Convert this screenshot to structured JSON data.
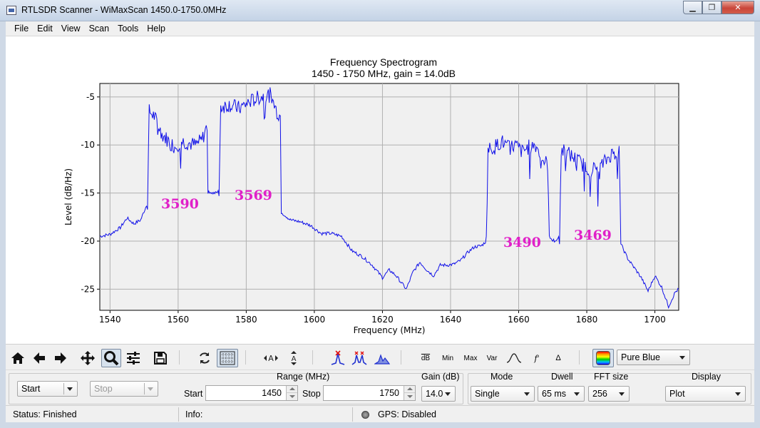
{
  "window": {
    "title": "RTLSDR Scanner - WiMaxScan 1450.0-1750.0MHz",
    "buttons": {
      "minimize": "▁",
      "maximize": "❐",
      "close": "✕"
    }
  },
  "menu": [
    "File",
    "Edit",
    "View",
    "Scan",
    "Tools",
    "Help"
  ],
  "chart_data": {
    "type": "line",
    "title": "Frequency Spectrogram",
    "subtitle": "1450 - 1750 MHz, gain = 14.0dB",
    "xlabel": "Frequency (MHz)",
    "ylabel": "Level (dB/Hz)",
    "xlim": [
      1537,
      1707
    ],
    "ylim": [
      -27.2,
      -3.6
    ],
    "xticks": [
      1540,
      1560,
      1580,
      1600,
      1620,
      1640,
      1660,
      1680,
      1700
    ],
    "yticks": [
      -25,
      -20,
      -15,
      -10,
      -5
    ],
    "grid": true,
    "line_color": "#1010e8",
    "background": "#f0f0f0",
    "series": [
      {
        "x": [
          1537,
          1540,
          1543,
          1545,
          1547,
          1549,
          1551,
          1551.5,
          1553,
          1555,
          1557,
          1559,
          1561,
          1563,
          1565,
          1567,
          1568.5,
          1569,
          1570,
          1571,
          1572,
          1572.5,
          1575,
          1578,
          1581,
          1584,
          1587,
          1589,
          1590,
          1590.3,
          1593,
          1596,
          1599,
          1602,
          1605,
          1608,
          1611,
          1614,
          1617,
          1620,
          1622,
          1624,
          1627,
          1629,
          1631,
          1633,
          1635,
          1637,
          1639,
          1641,
          1643,
          1645,
          1647,
          1649,
          1650.5,
          1651,
          1653,
          1655,
          1657,
          1659,
          1661,
          1663,
          1665,
          1667,
          1668.5,
          1669,
          1670.5,
          1672,
          1672.5,
          1675,
          1678,
          1681,
          1684,
          1687,
          1689.5,
          1690,
          1692,
          1694,
          1696,
          1698,
          1700,
          1702,
          1704,
          1706,
          1707
        ],
        "y": [
          -19.5,
          -19.3,
          -18.6,
          -17.6,
          -18.2,
          -17.8,
          -16.0,
          -6.5,
          -7.0,
          -8.8,
          -9.5,
          -10.2,
          -9.6,
          -9.8,
          -10.0,
          -9.5,
          -8.0,
          -14.8,
          -15.0,
          -15.0,
          -14.8,
          -6.0,
          -5.8,
          -6.2,
          -5.5,
          -5.0,
          -4.8,
          -6.5,
          -7.0,
          -17.0,
          -17.8,
          -18.0,
          -18.4,
          -19.2,
          -19.2,
          -19.5,
          -21.0,
          -21.6,
          -22.5,
          -23.8,
          -23.0,
          -23.6,
          -25.0,
          -23.2,
          -22.2,
          -23.0,
          -23.6,
          -22.5,
          -22.5,
          -22.4,
          -22.0,
          -21.2,
          -20.6,
          -20.5,
          -20.0,
          -10.5,
          -10.2,
          -9.6,
          -10.3,
          -10.0,
          -10.7,
          -10.2,
          -10.0,
          -11.5,
          -12.0,
          -19.6,
          -20.0,
          -19.6,
          -10.5,
          -11.0,
          -11.8,
          -12.6,
          -12.3,
          -11.0,
          -10.6,
          -20.3,
          -21.8,
          -22.8,
          -23.8,
          -25.2,
          -23.6,
          -24.8,
          -26.8,
          -25.3,
          -25.0
        ]
      }
    ]
  },
  "overlay_labels": [
    {
      "text": "3590"
    },
    {
      "text": "3569"
    },
    {
      "text": "3490"
    },
    {
      "text": "3469"
    }
  ],
  "toolbar": {
    "icons": [
      "home-icon",
      "back-icon",
      "forward-icon",
      "pan-icon",
      "zoom-icon",
      "configure-subplots-icon",
      "save-icon",
      "refresh-icon",
      "grid-icon",
      "auto-range-x-icon",
      "auto-range-y-icon",
      "peak-icon",
      "peaks-icon",
      "fill-icon",
      "db-icon",
      "min-icon",
      "max-icon",
      "var-icon",
      "smooth-icon",
      "diff-icon",
      "delta-icon",
      "colour-map-icon"
    ],
    "text_buttons": {
      "db": "dB",
      "min": "Min",
      "max": "Max",
      "var": "Var",
      "fprime": "f'",
      "delta": "Δ"
    },
    "colour_map": "Pure Blue"
  },
  "controls": {
    "start_button": "Start",
    "stop_button": "Stop",
    "range_label": "Range (MHz)",
    "start_label": "Start",
    "start_value": "1450",
    "stop_label": "Stop",
    "stop_value": "1750",
    "gain_label": "Gain (dB)",
    "gain_value": "14.0",
    "mode_label": "Mode",
    "mode_value": "Single",
    "dwell_label": "Dwell",
    "dwell_value": "65 ms",
    "fft_label": "FFT size",
    "fft_value": "256",
    "display_label": "Display",
    "display_value": "Plot"
  },
  "status": {
    "status_text": "Status: Finished",
    "info_text": "Info:",
    "gps_text": "GPS: Disabled"
  }
}
